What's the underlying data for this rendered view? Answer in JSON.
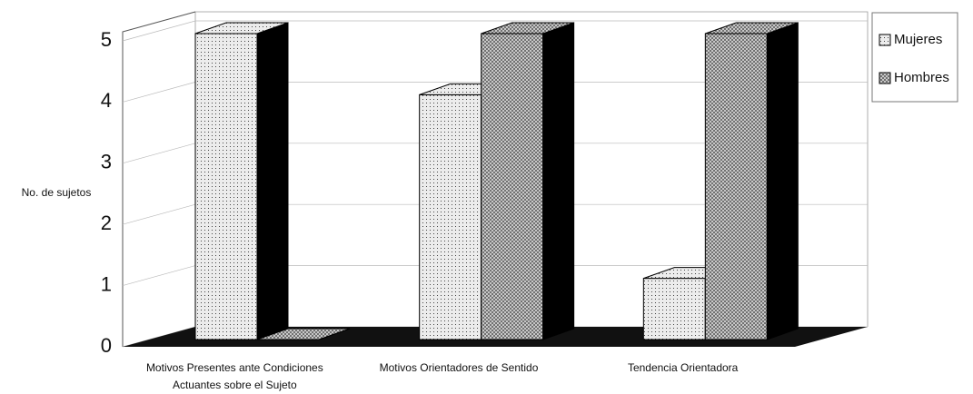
{
  "chart_data": {
    "type": "bar3d",
    "categories": [
      "Motivos Presentes ante Condiciones Actuantes sobre el Sujeto",
      "Motivos Orientadores de Sentido",
      "Tendencia Orientadora"
    ],
    "series": [
      {
        "name": "Mujeres",
        "color": "#ececec",
        "values": [
          5,
          4,
          1
        ]
      },
      {
        "name": "Hombres",
        "color": "#5a5a5a",
        "values": [
          0,
          5,
          5
        ]
      }
    ],
    "y_label": "No. de sujetos",
    "ylim": [
      0,
      5
    ],
    "yticks": [
      0,
      1,
      2,
      3,
      4,
      5
    ],
    "grid": true,
    "legend": "right"
  }
}
